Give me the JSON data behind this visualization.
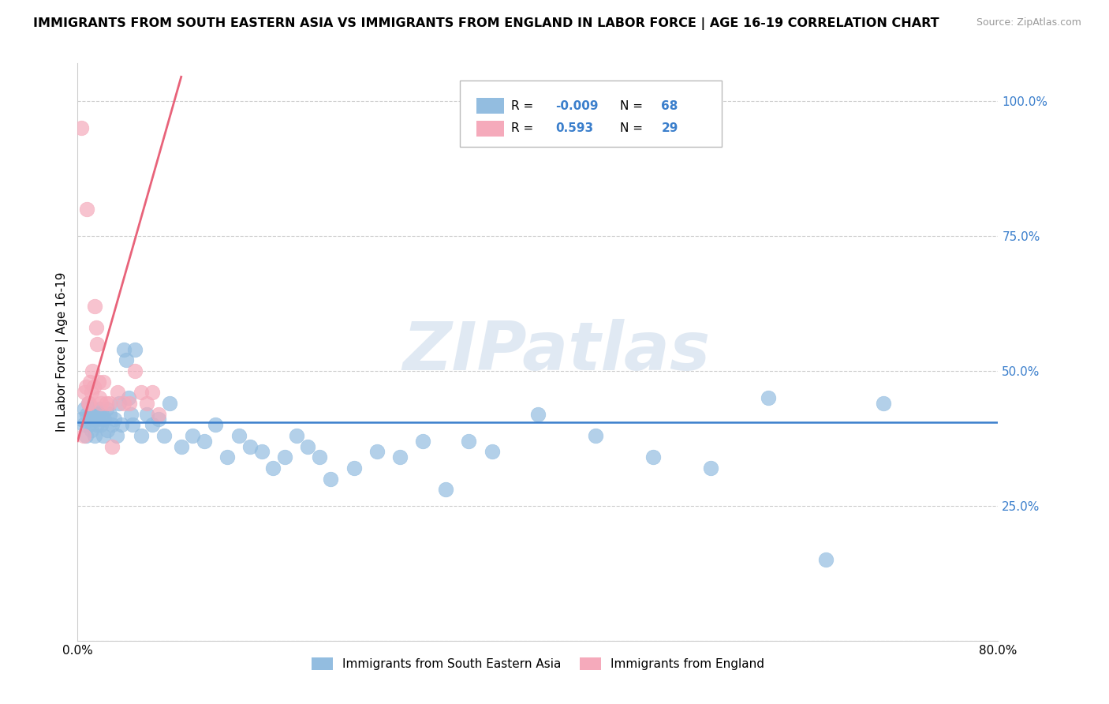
{
  "title": "IMMIGRANTS FROM SOUTH EASTERN ASIA VS IMMIGRANTS FROM ENGLAND IN LABOR FORCE | AGE 16-19 CORRELATION CHART",
  "source": "Source: ZipAtlas.com",
  "ylabel": "In Labor Force | Age 16-19",
  "r_blue": -0.009,
  "n_blue": 68,
  "r_pink": 0.593,
  "n_pink": 29,
  "blue_color": "#93BDE0",
  "pink_color": "#F5AABB",
  "blue_line_color": "#3B7FCC",
  "pink_line_color": "#E8637A",
  "watermark": "ZIPatlas",
  "legend_label_blue": "Immigrants from South Eastern Asia",
  "legend_label_pink": "Immigrants from England",
  "blue_line_y": 0.405,
  "pink_line_slope": 7.5,
  "pink_line_intercept": 0.37,
  "blue_scatter_x": [
    0.003,
    0.005,
    0.006,
    0.007,
    0.008,
    0.009,
    0.01,
    0.011,
    0.012,
    0.013,
    0.014,
    0.015,
    0.016,
    0.017,
    0.018,
    0.019,
    0.02,
    0.021,
    0.022,
    0.023,
    0.025,
    0.026,
    0.028,
    0.03,
    0.032,
    0.034,
    0.036,
    0.038,
    0.04,
    0.042,
    0.044,
    0.046,
    0.048,
    0.05,
    0.055,
    0.06,
    0.065,
    0.07,
    0.075,
    0.08,
    0.09,
    0.1,
    0.11,
    0.12,
    0.13,
    0.14,
    0.15,
    0.16,
    0.17,
    0.18,
    0.19,
    0.2,
    0.21,
    0.22,
    0.24,
    0.26,
    0.28,
    0.3,
    0.32,
    0.34,
    0.36,
    0.4,
    0.45,
    0.5,
    0.55,
    0.6,
    0.65,
    0.7
  ],
  "blue_scatter_y": [
    0.41,
    0.4,
    0.43,
    0.38,
    0.42,
    0.44,
    0.4,
    0.42,
    0.39,
    0.43,
    0.41,
    0.38,
    0.42,
    0.4,
    0.41,
    0.43,
    0.4,
    0.42,
    0.38,
    0.41,
    0.43,
    0.39,
    0.42,
    0.4,
    0.41,
    0.38,
    0.44,
    0.4,
    0.54,
    0.52,
    0.45,
    0.42,
    0.4,
    0.54,
    0.38,
    0.42,
    0.4,
    0.41,
    0.38,
    0.44,
    0.36,
    0.38,
    0.37,
    0.4,
    0.34,
    0.38,
    0.36,
    0.35,
    0.32,
    0.34,
    0.38,
    0.36,
    0.34,
    0.3,
    0.32,
    0.35,
    0.34,
    0.37,
    0.28,
    0.37,
    0.35,
    0.42,
    0.38,
    0.34,
    0.32,
    0.45,
    0.15,
    0.44
  ],
  "pink_scatter_x": [
    0.003,
    0.005,
    0.006,
    0.007,
    0.008,
    0.009,
    0.01,
    0.011,
    0.012,
    0.013,
    0.014,
    0.015,
    0.016,
    0.017,
    0.018,
    0.019,
    0.02,
    0.022,
    0.025,
    0.028,
    0.03,
    0.035,
    0.04,
    0.045,
    0.05,
    0.055,
    0.06,
    0.065,
    0.07
  ],
  "pink_scatter_y": [
    0.95,
    0.38,
    0.46,
    0.47,
    0.8,
    0.44,
    0.44,
    0.48,
    0.46,
    0.5,
    0.47,
    0.62,
    0.58,
    0.55,
    0.48,
    0.45,
    0.44,
    0.48,
    0.44,
    0.44,
    0.36,
    0.46,
    0.44,
    0.44,
    0.5,
    0.46,
    0.44,
    0.46,
    0.42
  ]
}
